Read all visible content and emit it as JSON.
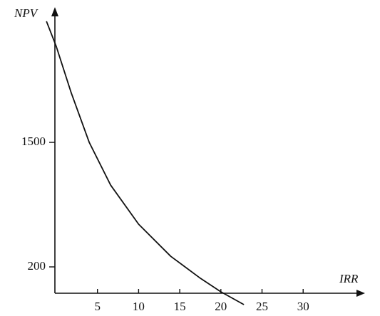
{
  "chart_data": {
    "type": "line",
    "x_label": "IRR",
    "y_label": "NPV",
    "x": [
      -1.2,
      0,
      1.8,
      4,
      6.6,
      10,
      13.9,
      17.4,
      20,
      22.8
    ],
    "series": [
      {
        "color": "#111111",
        "values": [
          2764,
          2500,
          2020,
          1500,
          1054,
          646,
          311,
          88,
          -60,
          -194
        ]
      }
    ],
    "xlim": [
      0,
      37
    ],
    "xticks": [
      5,
      10,
      15,
      20,
      25,
      30
    ],
    "ylim": [
      -75,
      2875
    ],
    "yticks": [
      200,
      1500
    ]
  }
}
